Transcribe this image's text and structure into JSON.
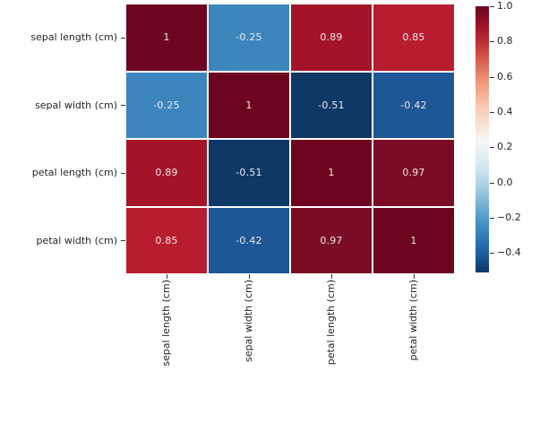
{
  "chart_data": {
    "type": "heatmap",
    "title": "",
    "description": "Correlation matrix heatmap of iris dataset features with RdBu colormap and vertical colorbar",
    "categories": [
      "sepal length (cm)",
      "sepal width (cm)",
      "petal length (cm)",
      "petal width (cm)"
    ],
    "row_labels": [
      "sepal length (cm)",
      "sepal width (cm)",
      "petal length (cm)",
      "petal width (cm)"
    ],
    "col_labels": [
      "sepal length (cm)",
      "sepal width (cm)",
      "petal length (cm)",
      "petal width (cm)"
    ],
    "matrix": [
      [
        1,
        -0.25,
        0.89,
        0.85
      ],
      [
        -0.25,
        1,
        -0.51,
        -0.42
      ],
      [
        0.89,
        -0.51,
        1,
        0.97
      ],
      [
        0.85,
        -0.42,
        0.97,
        1
      ]
    ],
    "cell_labels": [
      [
        "1",
        "-0.25",
        "0.89",
        "0.85"
      ],
      [
        "-0.25",
        "1",
        "-0.51",
        "-0.42"
      ],
      [
        "0.89",
        "-0.51",
        "1",
        "0.97"
      ],
      [
        "0.85",
        "-0.42",
        "0.97",
        "1"
      ]
    ],
    "cell_colors": [
      [
        "#6d0521",
        "#3c86bd",
        "#a31429",
        "#b71d2e"
      ],
      [
        "#3c86bd",
        "#6d0521",
        "#0e3866",
        "#1d5795"
      ],
      [
        "#a31429",
        "#0e3866",
        "#6d0521",
        "#7a0c26"
      ],
      [
        "#b71d2e",
        "#1d5795",
        "#7a0c26",
        "#6d0521"
      ]
    ],
    "annotation_color": "#f2e7ea",
    "background": "#ffffff",
    "tick_color": "#333333",
    "label_color": "#262626",
    "grid_line_color": "#ffffff",
    "colorbar": {
      "vmin": -0.51,
      "vmax": 1.0,
      "ticks": [
        {
          "label": "1.0",
          "value": 1.0
        },
        {
          "label": "0.8",
          "value": 0.8
        },
        {
          "label": "0.6",
          "value": 0.6
        },
        {
          "label": "0.4",
          "value": 0.4
        },
        {
          "label": "0.2",
          "value": 0.2
        },
        {
          "label": "0.0",
          "value": 0.0
        },
        {
          "label": "−0.2",
          "value": -0.2
        },
        {
          "label": "−0.4",
          "value": -0.4
        }
      ],
      "gradient": [
        {
          "pos": 0,
          "color": "#6d0521"
        },
        {
          "pos": 6.7,
          "color": "#9a1027"
        },
        {
          "pos": 13.5,
          "color": "#bd2f36"
        },
        {
          "pos": 20.2,
          "color": "#d85f4d"
        },
        {
          "pos": 26.9,
          "color": "#e98d70"
        },
        {
          "pos": 37.0,
          "color": "#fac7ae"
        },
        {
          "pos": 50.8,
          "color": "#f7f7f7"
        },
        {
          "pos": 60.6,
          "color": "#d2e6f0"
        },
        {
          "pos": 67.3,
          "color": "#aad1e5"
        },
        {
          "pos": 80.8,
          "color": "#4796c4"
        },
        {
          "pos": 87.5,
          "color": "#2e78b5"
        },
        {
          "pos": 94.3,
          "color": "#195798"
        },
        {
          "pos": 100,
          "color": "#0d3866"
        }
      ]
    }
  }
}
